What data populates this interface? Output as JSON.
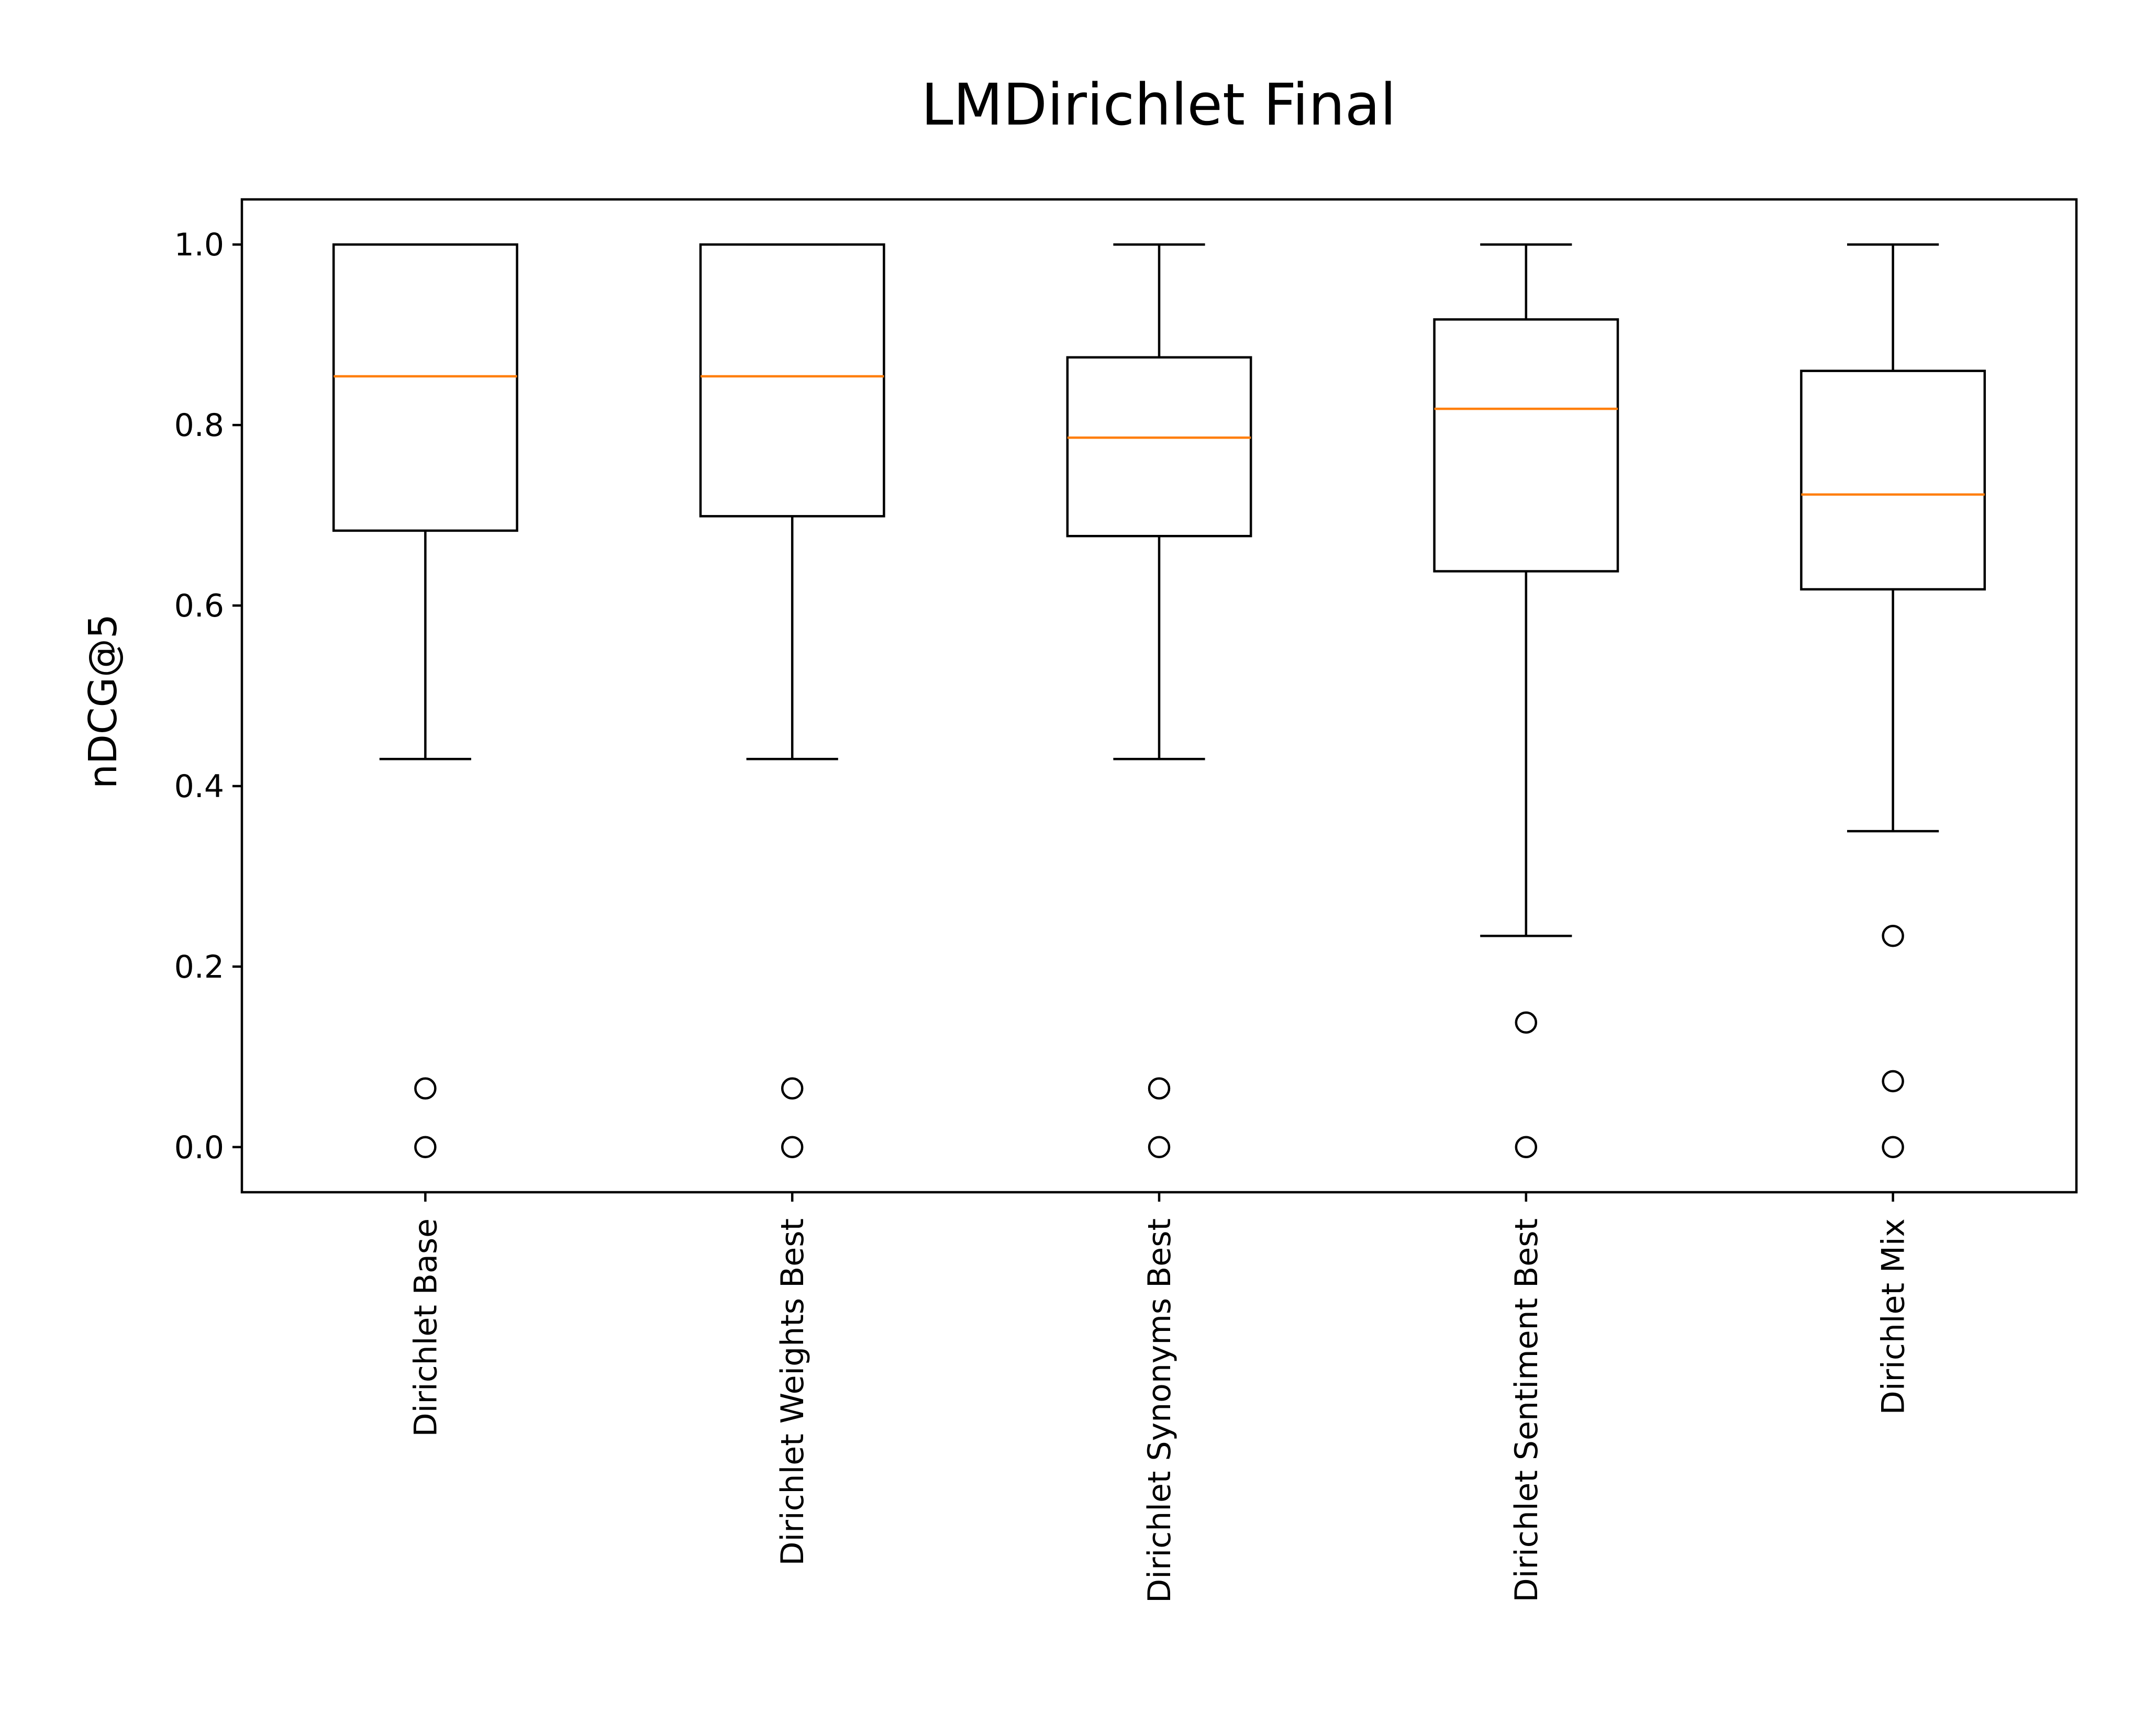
{
  "chart_data": {
    "type": "box",
    "title": "LMDirichlet Final",
    "xlabel": "",
    "ylabel": "nDCG@5",
    "ylim": [
      -0.05,
      1.05
    ],
    "yticks": [
      "0.0",
      "0.2",
      "0.4",
      "0.6",
      "0.8",
      "1.0"
    ],
    "ytick_values": [
      0.0,
      0.2,
      0.4,
      0.6,
      0.8,
      1.0
    ],
    "grid": false,
    "x_tick_rotation": "vertical",
    "categories": [
      "Dirichlet Base",
      "Dirichlet Weights Best",
      "Dirichlet Synonyms Best",
      "Dirichlet Sentiment Best",
      "Dirichlet Mix"
    ],
    "boxes": [
      {
        "category": "Dirichlet Base",
        "whisker_low": 0.43,
        "q1": 0.683,
        "median": 0.854,
        "q3": 1.0,
        "whisker_high": 1.0,
        "outliers": [
          0.065,
          0.0
        ]
      },
      {
        "category": "Dirichlet Weights Best",
        "whisker_low": 0.43,
        "q1": 0.699,
        "median": 0.854,
        "q3": 1.0,
        "whisker_high": 1.0,
        "outliers": [
          0.065,
          0.0
        ]
      },
      {
        "category": "Dirichlet Synonyms Best",
        "whisker_low": 0.43,
        "q1": 0.677,
        "median": 0.786,
        "q3": 0.875,
        "whisker_high": 1.0,
        "outliers": [
          0.065,
          0.0
        ]
      },
      {
        "category": "Dirichlet Sentiment Best",
        "whisker_low": 0.234,
        "q1": 0.638,
        "median": 0.818,
        "q3": 0.917,
        "whisker_high": 1.0,
        "outliers": [
          0.138,
          0.0
        ]
      },
      {
        "category": "Dirichlet Mix",
        "whisker_low": 0.35,
        "q1": 0.618,
        "median": 0.723,
        "q3": 0.86,
        "whisker_high": 1.0,
        "outliers": [
          0.234,
          0.073,
          0.0
        ]
      }
    ],
    "colors": {
      "box": "#000000",
      "median": "#ff7f0e",
      "background": "#ffffff"
    }
  }
}
